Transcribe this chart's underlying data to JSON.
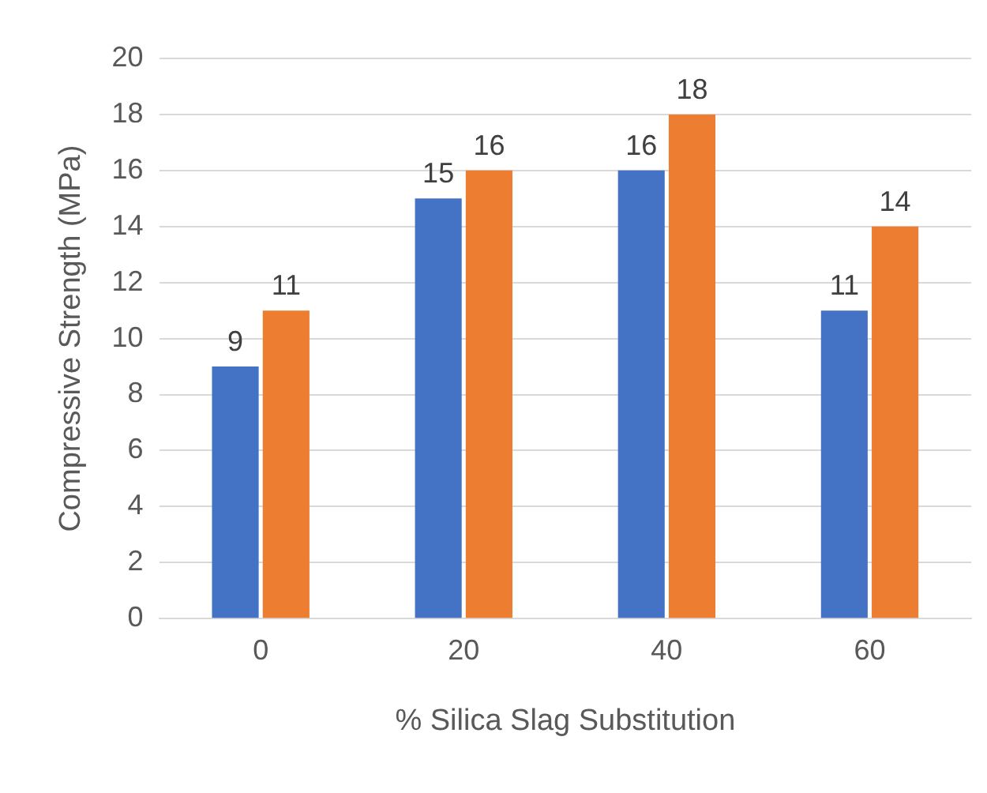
{
  "chart_data": {
    "type": "bar",
    "xlabel": "% Silica Slag Substitution",
    "ylabel": "Compressive Strength (MPa)",
    "categories": [
      "0",
      "20",
      "40",
      "60"
    ],
    "series": [
      {
        "color": "#4472c4",
        "values": [
          9,
          15,
          16,
          11
        ]
      },
      {
        "color": "#ed7d31",
        "values": [
          11,
          16,
          18,
          14
        ]
      }
    ],
    "ylim": [
      0,
      20
    ],
    "yticks": [
      0,
      2,
      4,
      6,
      8,
      10,
      12,
      14,
      16,
      18,
      20
    ],
    "grid": "y",
    "data_labels": true,
    "legend": false
  }
}
